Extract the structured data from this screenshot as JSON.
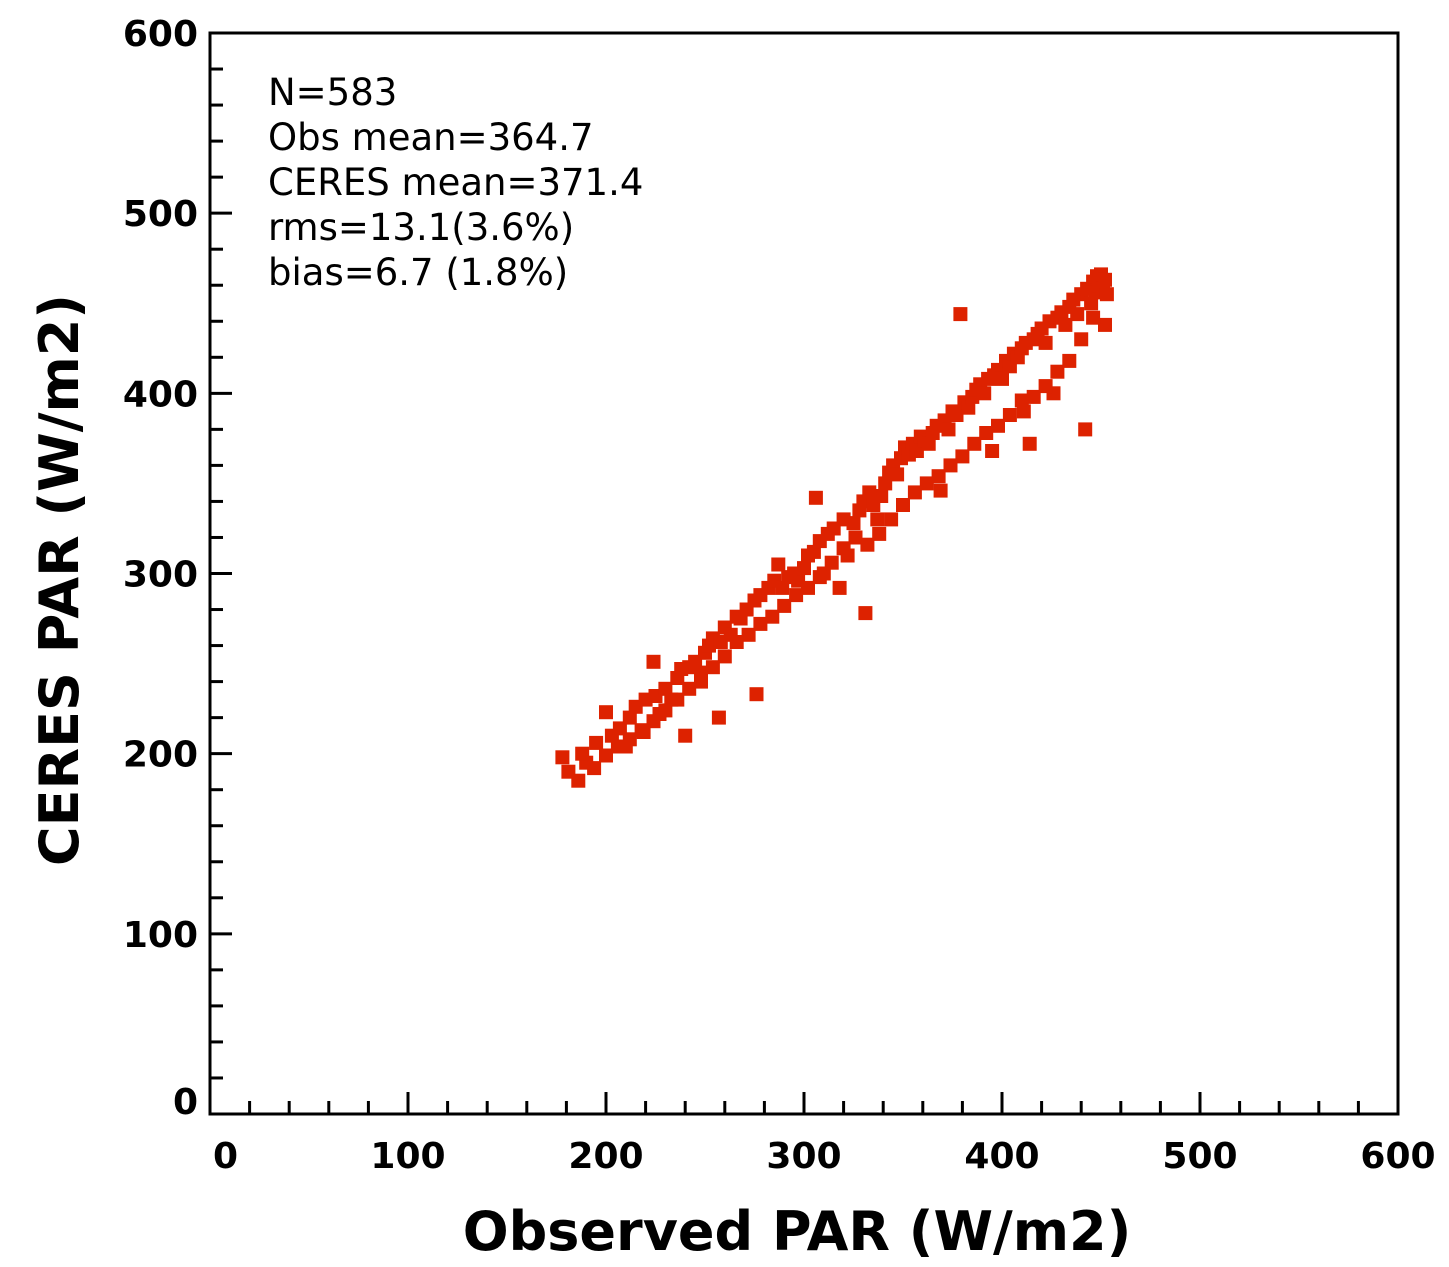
{
  "chart_data": {
    "type": "scatter",
    "xlabel": "Observed PAR (W/m2)",
    "ylabel": "CERES PAR (W/m2)",
    "xlim": [
      0,
      600
    ],
    "ylim": [
      0,
      600
    ],
    "xticks": [
      "0",
      "100",
      "200",
      "300",
      "400",
      "500",
      "600"
    ],
    "yticks": [
      "0",
      "100",
      "200",
      "300",
      "400",
      "500",
      "600"
    ],
    "minor_step": 20,
    "grid": false,
    "annotations": [
      "N=583",
      "Obs mean=364.7",
      "CERES mean=371.4",
      "rms=13.1(3.6%)",
      "bias=6.7 (1.8%)"
    ],
    "marker_color": "#dd2200",
    "series": [
      {
        "points": [
          [
            178,
            198
          ],
          [
            181,
            190
          ],
          [
            186,
            185
          ],
          [
            190,
            195
          ],
          [
            188,
            200
          ],
          [
            195,
            206
          ],
          [
            200,
            223
          ],
          [
            203,
            210
          ],
          [
            207,
            214
          ],
          [
            210,
            204
          ],
          [
            212,
            220
          ],
          [
            215,
            226
          ],
          [
            219,
            212
          ],
          [
            220,
            230
          ],
          [
            224,
            251
          ],
          [
            225,
            232
          ],
          [
            227,
            222
          ],
          [
            230,
            236
          ],
          [
            233,
            230
          ],
          [
            236,
            242
          ],
          [
            238,
            247
          ],
          [
            240,
            210
          ],
          [
            242,
            248
          ],
          [
            245,
            251
          ],
          [
            248,
            245
          ],
          [
            250,
            256
          ],
          [
            252,
            260
          ],
          [
            254,
            264
          ],
          [
            257,
            220
          ],
          [
            258,
            262
          ],
          [
            260,
            270
          ],
          [
            263,
            266
          ],
          [
            266,
            276
          ],
          [
            268,
            275
          ],
          [
            271,
            280
          ],
          [
            275,
            285
          ],
          [
            276,
            233
          ],
          [
            278,
            288
          ],
          [
            282,
            292
          ],
          [
            285,
            296
          ],
          [
            287,
            305
          ],
          [
            289,
            292
          ],
          [
            292,
            298
          ],
          [
            295,
            300
          ],
          [
            297,
            296
          ],
          [
            300,
            303
          ],
          [
            302,
            310
          ],
          [
            305,
            312
          ],
          [
            306,
            342
          ],
          [
            308,
            318
          ],
          [
            310,
            300
          ],
          [
            312,
            322
          ],
          [
            315,
            325
          ],
          [
            318,
            292
          ],
          [
            320,
            330
          ],
          [
            322,
            310
          ],
          [
            325,
            328
          ],
          [
            328,
            335
          ],
          [
            330,
            340
          ],
          [
            331,
            278
          ],
          [
            333,
            345
          ],
          [
            335,
            338
          ],
          [
            337,
            330
          ],
          [
            339,
            343
          ],
          [
            341,
            350
          ],
          [
            343,
            356
          ],
          [
            345,
            360
          ],
          [
            347,
            355
          ],
          [
            349,
            364
          ],
          [
            351,
            370
          ],
          [
            353,
            366
          ],
          [
            355,
            372
          ],
          [
            357,
            368
          ],
          [
            359,
            376
          ],
          [
            361,
            374
          ],
          [
            363,
            372
          ],
          [
            365,
            378
          ],
          [
            367,
            382
          ],
          [
            369,
            346
          ],
          [
            371,
            385
          ],
          [
            373,
            380
          ],
          [
            375,
            390
          ],
          [
            377,
            388
          ],
          [
            379,
            444
          ],
          [
            381,
            395
          ],
          [
            383,
            392
          ],
          [
            385,
            398
          ],
          [
            387,
            402
          ],
          [
            389,
            405
          ],
          [
            391,
            400
          ],
          [
            393,
            408
          ],
          [
            395,
            368
          ],
          [
            396,
            410
          ],
          [
            398,
            413
          ],
          [
            400,
            408
          ],
          [
            402,
            418
          ],
          [
            404,
            415
          ],
          [
            406,
            422
          ],
          [
            408,
            420
          ],
          [
            410,
            425
          ],
          [
            411,
            390
          ],
          [
            412,
            428
          ],
          [
            414,
            372
          ],
          [
            416,
            430
          ],
          [
            418,
            433
          ],
          [
            420,
            436
          ],
          [
            422,
            428
          ],
          [
            424,
            440
          ],
          [
            426,
            400
          ],
          [
            428,
            442
          ],
          [
            430,
            445
          ],
          [
            432,
            438
          ],
          [
            434,
            448
          ],
          [
            436,
            452
          ],
          [
            438,
            444
          ],
          [
            440,
            455
          ],
          [
            442,
            380
          ],
          [
            443,
            458
          ],
          [
            445,
            450
          ],
          [
            446,
            462
          ],
          [
            447,
            456
          ],
          [
            448,
            465
          ],
          [
            449,
            460
          ],
          [
            450,
            466
          ],
          [
            451,
            458
          ],
          [
            452,
            438
          ],
          [
            452,
            463
          ],
          [
            453,
            455
          ],
          [
            446,
            442
          ],
          [
            440,
            430
          ],
          [
            434,
            418
          ],
          [
            428,
            412
          ],
          [
            422,
            404
          ],
          [
            416,
            398
          ],
          [
            410,
            396
          ],
          [
            404,
            388
          ],
          [
            398,
            382
          ],
          [
            392,
            378
          ],
          [
            386,
            372
          ],
          [
            380,
            365
          ],
          [
            374,
            360
          ],
          [
            368,
            354
          ],
          [
            362,
            350
          ],
          [
            356,
            345
          ],
          [
            350,
            338
          ],
          [
            344,
            330
          ],
          [
            338,
            322
          ],
          [
            332,
            316
          ],
          [
            326,
            320
          ],
          [
            320,
            314
          ],
          [
            314,
            306
          ],
          [
            308,
            298
          ],
          [
            302,
            292
          ],
          [
            296,
            288
          ],
          [
            290,
            282
          ],
          [
            284,
            276
          ],
          [
            278,
            272
          ],
          [
            272,
            266
          ],
          [
            266,
            262
          ],
          [
            260,
            254
          ],
          [
            254,
            248
          ],
          [
            248,
            240
          ],
          [
            242,
            236
          ],
          [
            236,
            230
          ],
          [
            230,
            224
          ],
          [
            224,
            218
          ],
          [
            218,
            213
          ],
          [
            212,
            208
          ],
          [
            206,
            204
          ],
          [
            200,
            199
          ],
          [
            194,
            192
          ]
        ]
      }
    ]
  }
}
